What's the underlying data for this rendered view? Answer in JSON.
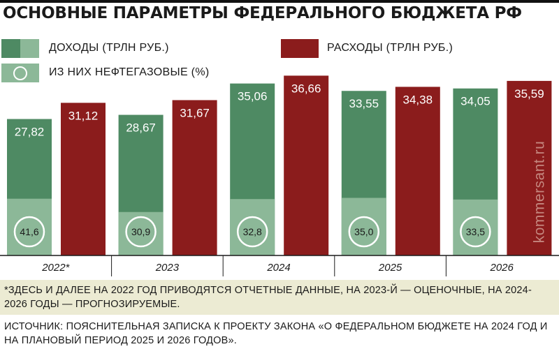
{
  "title": "ОСНОВНЫЕ ПАРАМЕТРЫ ФЕДЕРАЛЬНОГО БЮДЖЕТА РФ",
  "legend": {
    "income": "ДОХОДЫ (ТРЛН РУБ.)",
    "expenses": "РАСХОДЫ (ТРЛН РУБ.)",
    "oil_gas": "ИЗ НИХ НЕФТЕГАЗОВЫЕ (%)"
  },
  "colors": {
    "income": "#4e8a63",
    "income_oil_gas": "#8cb898",
    "expenses": "#8b1c1c"
  },
  "watermark": "kommersant.ru",
  "footnote": "*ЗДЕСЬ И ДАЛЕЕ НА 2022 ГОД ПРИВОДЯТСЯ ОТЧЕТНЫЕ ДАННЫЕ, НА 2023-Й — ОЦЕНОЧНЫЕ, НА 2024-2026 ГОДЫ — ПРОГНОЗИРУЕМЫЕ.",
  "source": "ИСТОЧНИК: ПОЯСНИТЕЛЬНАЯ ЗАПИСКА К ПРОЕКТУ ЗАКОНА «О ФЕДЕРАЛЬНОМ БЮДЖЕТЕ НА 2024 ГОД И НА ПЛАНОВЫЙ ПЕРИОД 2025 И 2026 ГОДОВ».",
  "chart_data": {
    "type": "bar",
    "categories": [
      "2022*",
      "2023",
      "2024",
      "2025",
      "2026"
    ],
    "series": [
      {
        "name": "ДОХОДЫ (ТРЛН РУБ.)",
        "values": [
          27.82,
          28.67,
          35.06,
          33.55,
          34.05
        ],
        "labels": [
          "27,82",
          "28,67",
          "35,06",
          "33,55",
          "34,05"
        ]
      },
      {
        "name": "РАСХОДЫ (ТРЛН РУБ.)",
        "values": [
          31.12,
          31.67,
          36.66,
          34.38,
          35.59
        ],
        "labels": [
          "31,12",
          "31,67",
          "36,66",
          "34,38",
          "35,59"
        ]
      }
    ],
    "oil_gas_share": {
      "name": "ИЗ НИХ НЕФТЕГАЗОВЫЕ (%)",
      "values": [
        41.6,
        30.9,
        32.8,
        35.0,
        33.5
      ],
      "labels": [
        "41,6",
        "30,9",
        "32,8",
        "35,0",
        "33,5"
      ]
    },
    "ylim": [
      0,
      37
    ]
  }
}
